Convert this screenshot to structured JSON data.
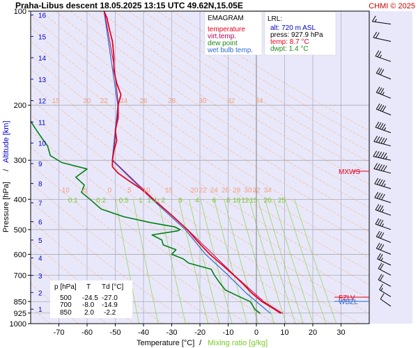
{
  "header": {
    "title": "Praha-Libus   descent   18.05.2025 13:15 UTC  49.62N,15.05E",
    "copyright": "CHMI © 2025"
  },
  "colors": {
    "plot_background": "#e8e8fa",
    "temperature": "#e8001c",
    "virt_temperature": "#b7005c",
    "dew_point": "#00800f",
    "wet_bulb": "#2c6ccf",
    "isotherm": "#a6a6c8",
    "dry_adiabat": "#f7b99b",
    "mixing_ratio": "#98d858",
    "altitude": "#0000cc",
    "isobar": "#a0a0a0",
    "wind_barb": "#000000"
  },
  "legend": {
    "title": "EMAGRAM",
    "items": [
      {
        "label": "temperature",
        "color": "#e8001c"
      },
      {
        "label": "virt.temp.",
        "color": "#b7005c"
      },
      {
        "label": "dew point",
        "color": "#1e8c1e"
      },
      {
        "label": "wet bulb temp.",
        "color": "#2c6ccf"
      }
    ]
  },
  "lrl": {
    "title": "LRL:",
    "alt": "alt: 720 m ASL",
    "press": "press: 927.9 hPa",
    "temp": "temp: 8.7 °C",
    "dwpt": "dwpt: 1.4 °C"
  },
  "table": {
    "headers": [
      "p [hPa]",
      "T",
      "Td [°C]"
    ],
    "rows": [
      [
        "500",
        "-24.5",
        "-27.0"
      ],
      [
        "700",
        "-8.0",
        "-14.9"
      ],
      [
        "850",
        "2.0",
        "-2.2"
      ]
    ]
  },
  "markers": {
    "mxws": "MXWS",
    "fzlv": "FZLV",
    "wbzl": "WBZL"
  },
  "chart_data": {
    "type": "line",
    "title": "Praha-Libus   descent   18.05.2025 13:15 UTC  49.62N,15.05E",
    "xlabel": "Temperature [°C]",
    "xlabel_secondary": "Mixing ratio [g/kg]",
    "ylabel": "Pressure [hPa]",
    "ylabel_secondary": "Altitude [km]",
    "y_scale": "log",
    "xlim": [
      -80,
      40
    ],
    "ylim": [
      1000,
      100
    ],
    "x_ticks": [
      "-70",
      "-60",
      "-50",
      "-40",
      "-30",
      "-20",
      "-10",
      "0",
      "10",
      "20",
      "30"
    ],
    "y_ticks": [
      "100",
      "200",
      "300",
      "400",
      "500",
      "600",
      "700",
      "850",
      "925",
      "1000"
    ],
    "altitude_ticks_km": [
      "1",
      "2",
      "3",
      "4",
      "5",
      "6",
      "7",
      "8",
      "9",
      "10",
      "11",
      "12",
      "13",
      "14",
      "15",
      "16"
    ],
    "dry_adiabat_labels_upper": [
      "15",
      "20",
      "22",
      "24",
      "26",
      "28",
      "30",
      "32",
      "34"
    ],
    "dry_adiabat_labels_middle": [
      "-10",
      "-5",
      "0",
      "5",
      "10",
      "15",
      "20",
      "22",
      "24",
      "26",
      "28",
      "30",
      "32",
      "34"
    ],
    "mixing_ratio_labels": [
      "0.1",
      "0.2",
      "0.5",
      "1",
      "1.4",
      "2",
      "3",
      "4",
      "6",
      "8",
      "10",
      "12",
      "15",
      "20",
      "25"
    ],
    "series": [
      {
        "name": "temperature",
        "points": [
          {
            "p": 927.9,
            "t": 8.7
          },
          {
            "p": 900,
            "t": 6.5
          },
          {
            "p": 850,
            "t": 2.0
          },
          {
            "p": 800,
            "t": -1.5
          },
          {
            "p": 750,
            "t": -4.5
          },
          {
            "p": 700,
            "t": -8.0
          },
          {
            "p": 650,
            "t": -12.0
          },
          {
            "p": 600,
            "t": -16.5
          },
          {
            "p": 550,
            "t": -20.5
          },
          {
            "p": 500,
            "t": -24.5
          },
          {
            "p": 450,
            "t": -30.0
          },
          {
            "p": 400,
            "t": -36.5
          },
          {
            "p": 370,
            "t": -41.0
          },
          {
            "p": 350,
            "t": -45.0
          },
          {
            "p": 330,
            "t": -49.0
          },
          {
            "p": 315,
            "t": -51.0
          },
          {
            "p": 300,
            "t": -51.0
          },
          {
            "p": 280,
            "t": -50.5
          },
          {
            "p": 260,
            "t": -49.5
          },
          {
            "p": 240,
            "t": -50.0
          },
          {
            "p": 220,
            "t": -49.0
          },
          {
            "p": 200,
            "t": -49.0
          },
          {
            "p": 185,
            "t": -48.0
          },
          {
            "p": 170,
            "t": -49.5
          },
          {
            "p": 155,
            "t": -50.5
          },
          {
            "p": 140,
            "t": -50.5
          },
          {
            "p": 125,
            "t": -51.0
          },
          {
            "p": 115,
            "t": -52.0
          },
          {
            "p": 105,
            "t": -53.0
          },
          {
            "p": 100,
            "t": -54.0
          }
        ]
      },
      {
        "name": "virt.temp.",
        "points": [
          {
            "p": 927.9,
            "t": 9.4
          },
          {
            "p": 850,
            "t": 2.6
          },
          {
            "p": 700,
            "t": -7.8
          },
          {
            "p": 500,
            "t": -24.4
          },
          {
            "p": 400,
            "t": -36.4
          },
          {
            "p": 300,
            "t": -50.9
          },
          {
            "p": 200,
            "t": -48.9
          },
          {
            "p": 150,
            "t": -50.4
          },
          {
            "p": 100,
            "t": -53.9
          }
        ]
      },
      {
        "name": "dew point",
        "points": [
          {
            "p": 927.9,
            "t": 1.4
          },
          {
            "p": 900,
            "t": -0.5
          },
          {
            "p": 870,
            "t": -1.5
          },
          {
            "p": 850,
            "t": -2.2
          },
          {
            "p": 820,
            "t": -6.0
          },
          {
            "p": 780,
            "t": -11.0
          },
          {
            "p": 740,
            "t": -13.0
          },
          {
            "p": 700,
            "t": -14.9
          },
          {
            "p": 670,
            "t": -16.0
          },
          {
            "p": 640,
            "t": -24.0
          },
          {
            "p": 620,
            "t": -26.0
          },
          {
            "p": 600,
            "t": -30.0
          },
          {
            "p": 580,
            "t": -28.5
          },
          {
            "p": 560,
            "t": -33.0
          },
          {
            "p": 540,
            "t": -33.5
          },
          {
            "p": 520,
            "t": -37.0
          },
          {
            "p": 505,
            "t": -28.0
          },
          {
            "p": 500,
            "t": -27.0
          },
          {
            "p": 490,
            "t": -29.0
          },
          {
            "p": 475,
            "t": -37.5
          },
          {
            "p": 455,
            "t": -47.0
          },
          {
            "p": 430,
            "t": -55.0
          },
          {
            "p": 400,
            "t": -59.0
          },
          {
            "p": 380,
            "t": -62.0
          },
          {
            "p": 360,
            "t": -61.0
          },
          {
            "p": 340,
            "t": -64.0
          },
          {
            "p": 320,
            "t": -60.0
          },
          {
            "p": 305,
            "t": -69.0
          },
          {
            "p": 290,
            "t": -73.0
          },
          {
            "p": 270,
            "t": -74.0
          },
          {
            "p": 255,
            "t": -76.0
          },
          {
            "p": 240,
            "t": -78.0
          },
          {
            "p": 225,
            "t": -80.0
          }
        ]
      },
      {
        "name": "wet bulb temp.",
        "points": [
          {
            "p": 927.9,
            "t": 5.0
          },
          {
            "p": 850,
            "t": 0.0
          },
          {
            "p": 800,
            "t": -3.5
          },
          {
            "p": 700,
            "t": -10.0
          },
          {
            "p": 600,
            "t": -18.0
          },
          {
            "p": 500,
            "t": -25.2
          },
          {
            "p": 400,
            "t": -37.0
          },
          {
            "p": 300,
            "t": -51.1
          },
          {
            "p": 200,
            "t": -49.1
          },
          {
            "p": 100,
            "t": -54.0
          }
        ]
      }
    ],
    "wind_barbs": [
      {
        "p": 110,
        "dir_deg": 290,
        "speed_kt": 15
      },
      {
        "p": 125,
        "dir_deg": 300,
        "speed_kt": 20
      },
      {
        "p": 145,
        "dir_deg": 315,
        "speed_kt": 25
      },
      {
        "p": 165,
        "dir_deg": 320,
        "speed_kt": 30
      },
      {
        "p": 190,
        "dir_deg": 320,
        "speed_kt": 35
      },
      {
        "p": 215,
        "dir_deg": 320,
        "speed_kt": 40
      },
      {
        "p": 245,
        "dir_deg": 315,
        "speed_kt": 45
      },
      {
        "p": 270,
        "dir_deg": 305,
        "speed_kt": 50
      },
      {
        "p": 300,
        "dir_deg": 300,
        "speed_kt": 55
      },
      {
        "p": 330,
        "dir_deg": 305,
        "speed_kt": 50
      },
      {
        "p": 370,
        "dir_deg": 310,
        "speed_kt": 45
      },
      {
        "p": 410,
        "dir_deg": 310,
        "speed_kt": 40
      },
      {
        "p": 450,
        "dir_deg": 315,
        "speed_kt": 35
      },
      {
        "p": 500,
        "dir_deg": 315,
        "speed_kt": 35
      },
      {
        "p": 550,
        "dir_deg": 320,
        "speed_kt": 30
      },
      {
        "p": 600,
        "dir_deg": 320,
        "speed_kt": 30
      },
      {
        "p": 650,
        "dir_deg": 325,
        "speed_kt": 25
      },
      {
        "p": 700,
        "dir_deg": 330,
        "speed_kt": 20
      },
      {
        "p": 760,
        "dir_deg": 330,
        "speed_kt": 20
      },
      {
        "p": 820,
        "dir_deg": 335,
        "speed_kt": 15
      },
      {
        "p": 880,
        "dir_deg": 340,
        "speed_kt": 10
      }
    ],
    "levels": {
      "mxws_hpa": 330,
      "fzlv_hpa": 827,
      "wbzl_hpa": 855
    },
    "grid": true,
    "legend_position": "top-right"
  }
}
